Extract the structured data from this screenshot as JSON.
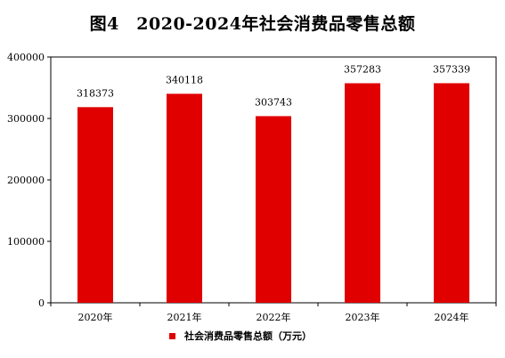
{
  "chart_data": {
    "type": "bar",
    "title": "图4　2020-2024年社会消费品零售总额",
    "categories": [
      "2020年",
      "2021年",
      "2022年",
      "2023年",
      "2024年"
    ],
    "series": [
      {
        "name": "社会消费品零售总额（万元）",
        "values": [
          318373,
          340118,
          303743,
          357283,
          357339
        ],
        "color": "#e00000"
      }
    ],
    "data_labels": [
      "318373",
      "340118",
      "303743",
      "357283",
      "357339"
    ],
    "ylim": [
      0,
      400000
    ],
    "yticks": [
      0,
      100000,
      200000,
      300000,
      400000
    ],
    "ytick_labels": [
      "0",
      "100000",
      "200000",
      "300000",
      "400000"
    ],
    "grid": false,
    "legend_position": "bottom"
  }
}
